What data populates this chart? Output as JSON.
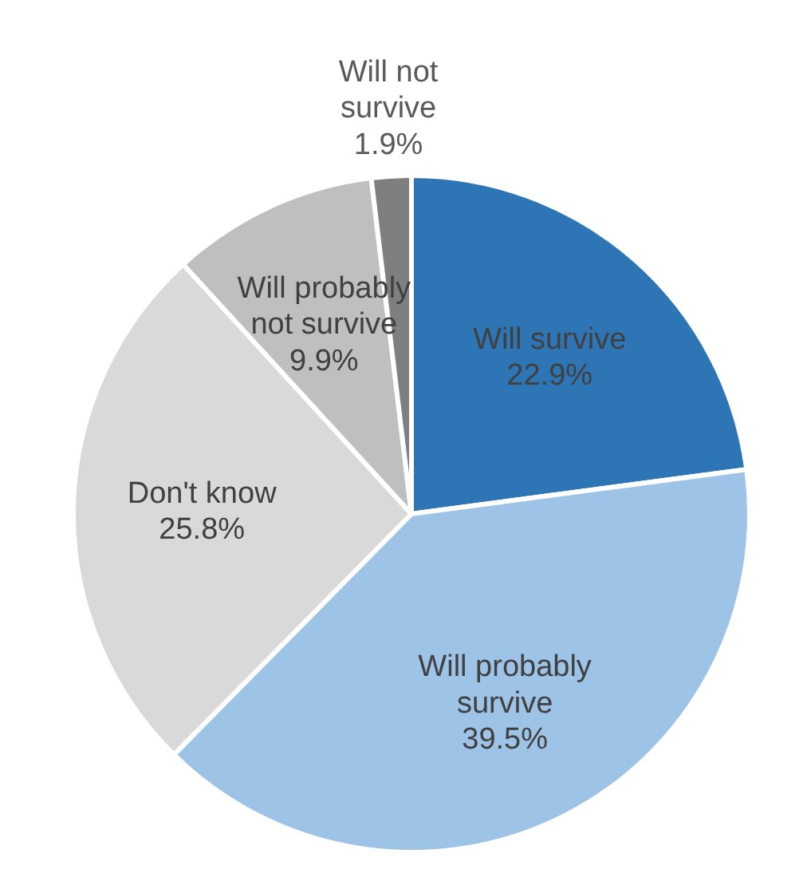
{
  "chart_data": {
    "type": "pie",
    "categories": [
      "Will survive",
      "Will probably survive",
      "Don't know",
      "Will probably not survive",
      "Will not survive"
    ],
    "values": [
      22.9,
      39.5,
      25.8,
      9.9,
      1.9
    ],
    "value_labels": [
      "22.9%",
      "39.5%",
      "25.8%",
      "9.9%",
      "1.9%"
    ],
    "colors": [
      "#2e75b6",
      "#9dc3e6",
      "#d9d9d9",
      "#bfbfbf",
      "#7f7f7f"
    ]
  }
}
